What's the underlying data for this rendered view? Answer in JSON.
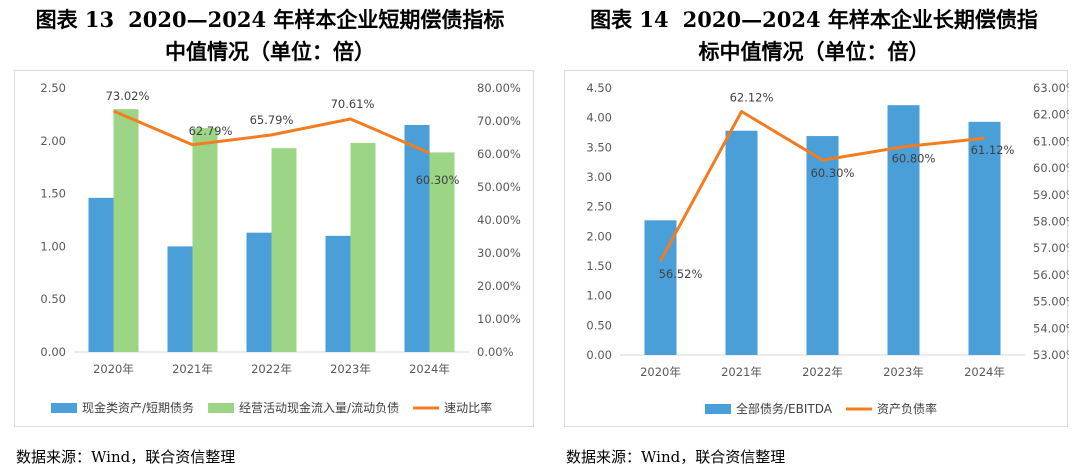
{
  "source_note": "数据来源：Wind，联合资信整理",
  "colors": {
    "bar_blue": "#4a9fd8",
    "bar_green": "#9dd586",
    "line_orange": "#f47c20"
  },
  "figures": [
    {
      "number": "图表 13",
      "title_line1": "2020—2024 年样本企业短期偿债指标",
      "title_line2": "中值情况（单位：倍）"
    },
    {
      "number": "图表 14",
      "title_line1": "2020—2024 年样本企业长期偿债指",
      "title_line2": "标中值情况（单位：倍）"
    }
  ],
  "chart_data": [
    {
      "type": "bar",
      "categories": [
        "2020年",
        "2021年",
        "2022年",
        "2023年",
        "2024年"
      ],
      "series": [
        {
          "name": "现金类资产/短期债务",
          "kind": "bar",
          "axis": "left",
          "values": [
            1.46,
            1.0,
            1.13,
            1.1,
            2.15
          ]
        },
        {
          "name": "经营活动现金流入量/流动负债",
          "kind": "bar",
          "axis": "left",
          "values": [
            2.3,
            2.12,
            1.93,
            1.98,
            1.89
          ]
        },
        {
          "name": "速动比率",
          "kind": "line",
          "axis": "right",
          "values": [
            73.02,
            62.79,
            65.79,
            70.61,
            60.3
          ],
          "labels": [
            "73.02%",
            "62.79%",
            "65.79%",
            "70.61%",
            "60.30%"
          ]
        }
      ],
      "y_left": {
        "ylim": [
          0,
          2.5
        ],
        "ticks": [
          "0.00",
          "0.50",
          "1.00",
          "1.50",
          "2.00",
          "2.50"
        ]
      },
      "y_right": {
        "ylim": [
          0,
          80
        ],
        "ticks": [
          "0.00%",
          "10.00%",
          "20.00%",
          "30.00%",
          "40.00%",
          "50.00%",
          "60.00%",
          "70.00%",
          "80.00%"
        ]
      },
      "grid": false,
      "legend_position": "bottom"
    },
    {
      "type": "bar",
      "categories": [
        "2020年",
        "2021年",
        "2022年",
        "2023年",
        "2024年"
      ],
      "series": [
        {
          "name": "全部债务/EBITDA",
          "kind": "bar",
          "axis": "left",
          "values": [
            2.27,
            3.78,
            3.69,
            4.21,
            3.93
          ]
        },
        {
          "name": "资产负债率",
          "kind": "line",
          "axis": "right",
          "values": [
            56.52,
            62.12,
            60.3,
            60.8,
            61.12
          ],
          "labels": [
            "56.52%",
            "62.12%",
            "60.30%",
            "60.80%",
            "61.12%"
          ]
        }
      ],
      "y_left": {
        "ylim": [
          0,
          4.5
        ],
        "ticks": [
          "0.00",
          "0.50",
          "1.00",
          "1.50",
          "2.00",
          "2.50",
          "3.00",
          "3.50",
          "4.00",
          "4.50"
        ]
      },
      "y_right": {
        "ylim": [
          53,
          63
        ],
        "ticks": [
          "53.00%",
          "54.00%",
          "55.00%",
          "56.00%",
          "57.00%",
          "58.00%",
          "59.00%",
          "60.00%",
          "61.00%",
          "62.00%",
          "63.00%"
        ]
      },
      "grid": false,
      "legend_position": "bottom"
    }
  ]
}
